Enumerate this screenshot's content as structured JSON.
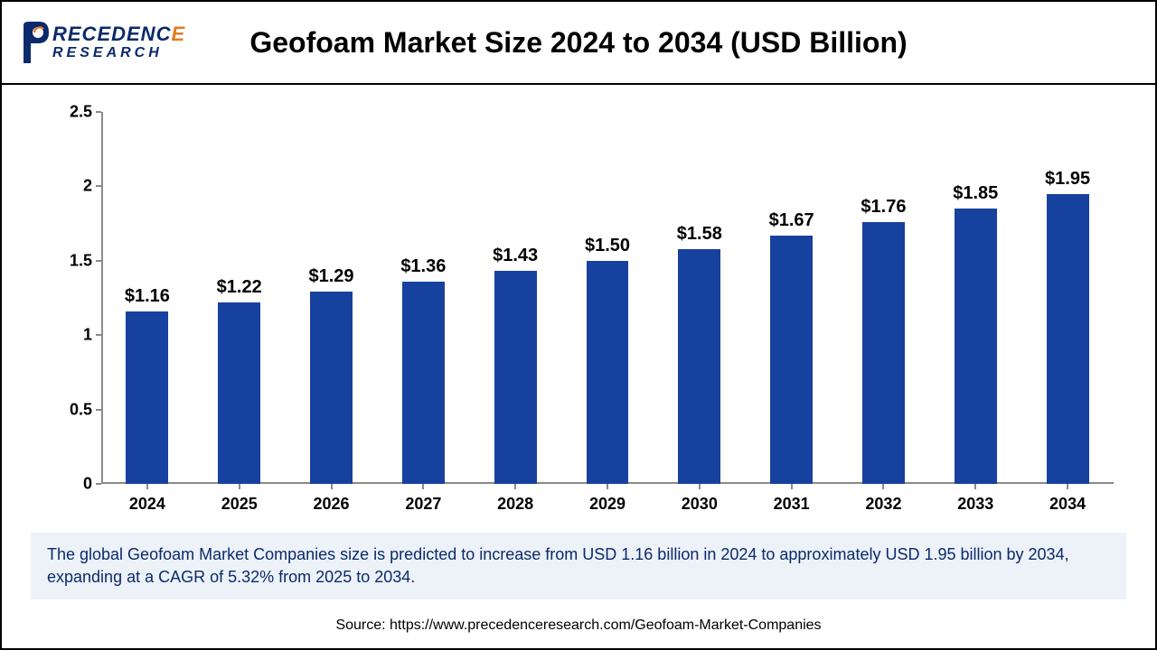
{
  "logo": {
    "top_navy": "RECEDENC",
    "top_orange": "E",
    "bottom": "RESEARCH",
    "p_fill": "#0a2a6c",
    "p_accent": "#e07b1f"
  },
  "title": "Geofoam Market Size 2024 to 2034 (USD Billion)",
  "chart": {
    "type": "bar",
    "categories": [
      "2024",
      "2025",
      "2026",
      "2027",
      "2028",
      "2029",
      "2030",
      "2031",
      "2032",
      "2033",
      "2034"
    ],
    "values": [
      1.16,
      1.22,
      1.29,
      1.36,
      1.43,
      1.5,
      1.58,
      1.67,
      1.76,
      1.85,
      1.95
    ],
    "value_labels": [
      "$1.16",
      "$1.22",
      "$1.29",
      "$1.36",
      "$1.43",
      "$1.50",
      "$1.58",
      "$1.67",
      "$1.76",
      "$1.85",
      "$1.95"
    ],
    "bar_color": "#17419e",
    "ylim": [
      0,
      2.5
    ],
    "ytick_step": 0.5,
    "ytick_labels": [
      "0",
      "0.5",
      "1",
      "1.5",
      "2",
      "2.5"
    ],
    "axis_color": "#8a8a8a",
    "background": "#ffffff",
    "label_fontsize": 20,
    "tick_fontsize": 18,
    "bar_width_ratio": 0.46
  },
  "footer": {
    "text": "The global Geofoam Market Companies size is predicted to increase from USD 1.16 billion in 2024 to approximately USD 1.95 billion by 2034, expanding at a CAGR of 5.32% from 2025 to 2034.",
    "bg": "#edf1f8",
    "color": "#0a2a6c"
  },
  "source": "Source: https://www.precedenceresearch.com/Geofoam-Market-Companies"
}
